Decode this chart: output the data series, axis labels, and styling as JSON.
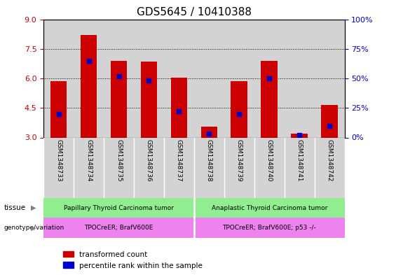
{
  "title": "GDS5645 / 10410388",
  "samples": [
    "GSM1348733",
    "GSM1348734",
    "GSM1348735",
    "GSM1348736",
    "GSM1348737",
    "GSM1348738",
    "GSM1348739",
    "GSM1348740",
    "GSM1348741",
    "GSM1348742"
  ],
  "transformed_count": [
    5.85,
    8.2,
    6.9,
    6.85,
    6.05,
    3.55,
    5.85,
    6.9,
    3.2,
    4.65
  ],
  "percentile_rank": [
    20,
    65,
    52,
    48,
    22,
    3,
    20,
    50,
    2,
    10
  ],
  "ylim_left": [
    3,
    9
  ],
  "ylim_right": [
    0,
    100
  ],
  "yticks_left": [
    3,
    4.5,
    6,
    7.5,
    9
  ],
  "yticks_right": [
    0,
    25,
    50,
    75,
    100
  ],
  "bar_color": "#cc0000",
  "dot_color": "#0000cc",
  "bar_width": 0.55,
  "dot_size": 25,
  "tissue_group1": "Papillary Thyroid Carcinoma tumor",
  "tissue_group2": "Anaplastic Thyroid Carcinoma tumor",
  "genotype_group1": "TPOCreER; BrafV600E",
  "genotype_group2": "TPOCreER; BrafV600E; p53 -/-",
  "group1_count": 5,
  "group2_count": 5,
  "tissue_color": "#90ee90",
  "genotype_color": "#ee82ee",
  "ylabel_left_color": "#cc0000",
  "ylabel_right_color": "#0000cc",
  "legend_items": [
    "transformed count",
    "percentile rank within the sample"
  ],
  "legend_colors": [
    "#cc0000",
    "#0000cc"
  ],
  "sample_bg_color": "#d3d3d3",
  "baseline": 3.0,
  "grid_dotted_values": [
    4.5,
    6.0,
    7.5
  ],
  "title_fontsize": 11,
  "tick_fontsize": 8,
  "label_fontsize": 8
}
